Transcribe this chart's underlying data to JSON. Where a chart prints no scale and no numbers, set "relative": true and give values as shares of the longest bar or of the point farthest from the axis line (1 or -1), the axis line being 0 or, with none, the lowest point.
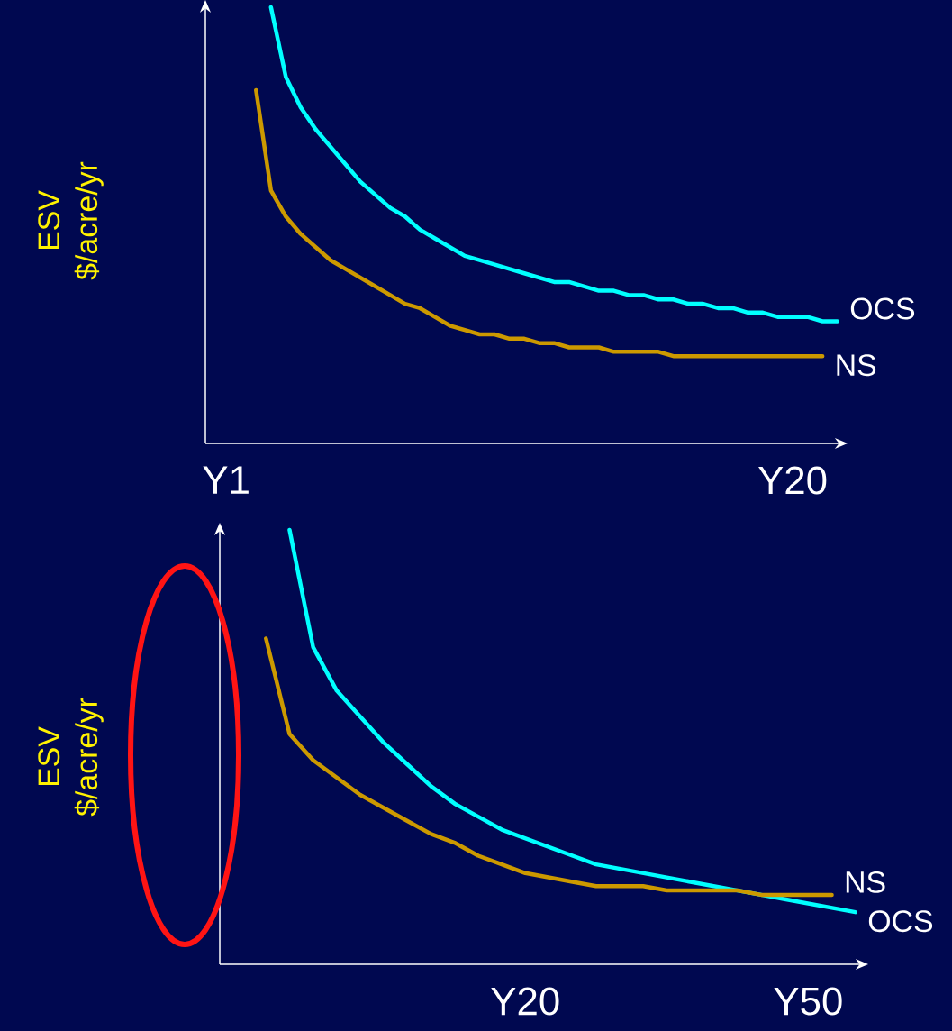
{
  "chart_data": [
    {
      "type": "line",
      "relative": true,
      "ylabel": "ESV $/acre/yr",
      "categories": [
        "Y1",
        null,
        null,
        null,
        null,
        null,
        null,
        null,
        null,
        null,
        null,
        null,
        null,
        null,
        null,
        null,
        null,
        null,
        null,
        null,
        null,
        null,
        null,
        null,
        null,
        null,
        null,
        null,
        null,
        null,
        null,
        null,
        null,
        null,
        null,
        null,
        null,
        null,
        "Y20",
        null,
        null,
        null
      ],
      "legend": false,
      "marker": "none",
      "line_style": "solid",
      "series": [
        {
          "name": "OCS",
          "color": "#00ffff",
          "values": [
            null,
            null,
            null,
            1.0,
            0.84,
            0.77,
            0.72,
            0.68,
            0.64,
            0.6,
            0.57,
            0.54,
            0.52,
            0.49,
            0.47,
            0.45,
            0.43,
            0.42,
            0.41,
            0.4,
            0.39,
            0.38,
            0.37,
            0.37,
            0.36,
            0.35,
            0.35,
            0.34,
            0.34,
            0.33,
            0.33,
            0.32,
            0.32,
            0.31,
            0.31,
            0.3,
            0.3,
            0.29,
            0.29,
            0.29,
            0.28,
            0.28
          ]
        },
        {
          "name": "NS",
          "color": "#cc9900",
          "values": [
            null,
            null,
            0.81,
            0.58,
            0.52,
            0.48,
            0.45,
            0.42,
            0.4,
            0.38,
            0.36,
            0.34,
            0.32,
            0.31,
            0.29,
            0.27,
            0.26,
            0.25,
            0.25,
            0.24,
            0.24,
            0.23,
            0.23,
            0.22,
            0.22,
            0.22,
            0.21,
            0.21,
            0.21,
            0.21,
            0.2,
            0.2,
            0.2,
            0.2,
            0.2,
            0.2,
            0.2,
            0.2,
            0.2,
            0.2,
            0.2,
            null
          ]
        }
      ]
    },
    {
      "type": "line",
      "relative": true,
      "ylabel": "ESV $/acre/yr",
      "categories": [
        null,
        null,
        null,
        null,
        null,
        null,
        null,
        null,
        null,
        null,
        null,
        "Y20",
        null,
        null,
        null,
        null,
        null,
        null,
        null,
        null,
        null,
        null,
        null,
        "Y50",
        null,
        null
      ],
      "legend": false,
      "marker": "none",
      "line_style": "solid",
      "series": [
        {
          "name": "OCS",
          "color": "#00ffff",
          "values": [
            null,
            1.0,
            0.73,
            0.63,
            0.57,
            0.51,
            0.46,
            0.41,
            0.37,
            0.34,
            0.31,
            0.29,
            0.27,
            0.25,
            0.23,
            0.22,
            0.21,
            0.2,
            0.19,
            0.18,
            0.17,
            0.16,
            0.15,
            0.14,
            0.13,
            0.12
          ]
        },
        {
          "name": "NS",
          "color": "#cc9900",
          "values": [
            0.75,
            0.53,
            0.47,
            0.43,
            0.39,
            0.36,
            0.33,
            0.3,
            0.28,
            0.25,
            0.23,
            0.21,
            0.2,
            0.19,
            0.18,
            0.18,
            0.18,
            0.17,
            0.17,
            0.17,
            0.17,
            0.16,
            0.16,
            0.16,
            0.16,
            null
          ]
        }
      ]
    }
  ]
}
